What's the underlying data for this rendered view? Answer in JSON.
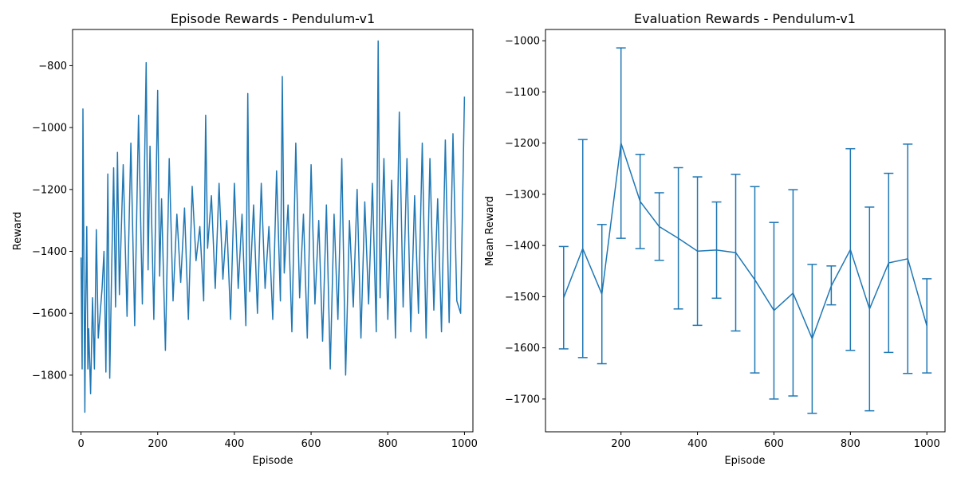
{
  "chart_data": [
    {
      "type": "line",
      "title": "Episode Rewards - Pendulum-v1",
      "xlabel": "Episode",
      "ylabel": "Reward",
      "xlim": [
        -22,
        1022
      ],
      "ylim": [
        -1983,
        -683
      ],
      "xticks": [
        0,
        200,
        400,
        600,
        800,
        1000
      ],
      "yticks": [
        -1800,
        -1600,
        -1400,
        -1200,
        -1000,
        -800
      ],
      "color": "#1f77b4",
      "grid": false,
      "series": [
        {
          "x": [
            0,
            3,
            5,
            8,
            10,
            12,
            15,
            18,
            20,
            25,
            30,
            35,
            40,
            45,
            50,
            55,
            60,
            65,
            70,
            75,
            80,
            85,
            90,
            95,
            100,
            110,
            120,
            130,
            140,
            150,
            160,
            170,
            175,
            180,
            190,
            200,
            205,
            210,
            220,
            230,
            240,
            250,
            260,
            270,
            280,
            290,
            300,
            310,
            320,
            325,
            330,
            340,
            350,
            360,
            370,
            380,
            390,
            400,
            410,
            420,
            430,
            435,
            440,
            450,
            460,
            470,
            480,
            490,
            500,
            510,
            520,
            525,
            530,
            540,
            550,
            560,
            570,
            580,
            590,
            600,
            610,
            620,
            630,
            640,
            650,
            660,
            670,
            680,
            690,
            700,
            710,
            720,
            730,
            740,
            750,
            760,
            770,
            775,
            780,
            790,
            800,
            810,
            820,
            830,
            840,
            850,
            860,
            870,
            880,
            890,
            900,
            910,
            920,
            930,
            940,
            950,
            960,
            970,
            980,
            990,
            1000
          ],
          "y": [
            -1420,
            -1780,
            -940,
            -1500,
            -1920,
            -1600,
            -1320,
            -1780,
            -1650,
            -1860,
            -1550,
            -1780,
            -1330,
            -1680,
            -1600,
            -1520,
            -1400,
            -1790,
            -1150,
            -1810,
            -1460,
            -1130,
            -1580,
            -1080,
            -1540,
            -1120,
            -1610,
            -1050,
            -1640,
            -960,
            -1570,
            -790,
            -1460,
            -1060,
            -1620,
            -880,
            -1480,
            -1230,
            -1720,
            -1100,
            -1560,
            -1280,
            -1500,
            -1260,
            -1620,
            -1190,
            -1430,
            -1320,
            -1560,
            -960,
            -1390,
            -1220,
            -1520,
            -1180,
            -1490,
            -1300,
            -1620,
            -1180,
            -1520,
            -1280,
            -1640,
            -890,
            -1530,
            -1250,
            -1600,
            -1180,
            -1520,
            -1320,
            -1620,
            -1140,
            -1560,
            -835,
            -1470,
            -1250,
            -1660,
            -1050,
            -1550,
            -1280,
            -1680,
            -1120,
            -1570,
            -1300,
            -1690,
            -1250,
            -1780,
            -1280,
            -1620,
            -1100,
            -1800,
            -1300,
            -1580,
            -1200,
            -1680,
            -1240,
            -1570,
            -1180,
            -1660,
            -720,
            -1550,
            -1100,
            -1620,
            -1170,
            -1680,
            -950,
            -1580,
            -1100,
            -1660,
            -1220,
            -1600,
            -1050,
            -1680,
            -1100,
            -1590,
            -1230,
            -1660,
            -1040,
            -1630,
            -1020,
            -1560,
            -1600,
            -900
          ]
        }
      ]
    },
    {
      "type": "line",
      "title": "Evaluation Rewards - Pendulum-v1",
      "xlabel": "Episode",
      "ylabel": "Mean Reward",
      "xlim": [
        2.5,
        1047.5
      ],
      "ylim": [
        -1764,
        -978
      ],
      "xticks": [
        200,
        400,
        600,
        800,
        1000
      ],
      "yticks": [
        -1700,
        -1600,
        -1500,
        -1400,
        -1300,
        -1200,
        -1100,
        -1000
      ],
      "color": "#1f77b4",
      "grid": false,
      "error_bars": true,
      "series": [
        {
          "x": [
            50,
            100,
            150,
            200,
            250,
            300,
            350,
            400,
            450,
            500,
            550,
            600,
            650,
            700,
            750,
            800,
            850,
            900,
            950,
            1000
          ],
          "y": [
            -1502,
            -1406,
            -1495,
            -1200,
            -1314,
            -1363,
            -1386,
            -1411,
            -1409,
            -1414,
            -1467,
            -1527,
            -1493,
            -1582,
            -1479,
            -1408,
            -1524,
            -1434,
            -1426,
            -1557
          ],
          "lower": [
            -1602,
            -1619,
            -1631,
            -1386,
            -1406,
            -1429,
            -1524,
            -1556,
            -1503,
            -1567,
            -1649,
            -1700,
            -1694,
            -1728,
            -1516,
            -1605,
            -1723,
            -1609,
            -1650,
            -1649
          ],
          "upper": [
            -1402,
            -1193,
            -1359,
            -1014,
            -1222,
            -1297,
            -1248,
            -1266,
            -1315,
            -1261,
            -1285,
            -1355,
            -1291,
            -1437,
            -1440,
            -1211,
            -1325,
            -1259,
            -1202,
            -1465
          ]
        }
      ]
    }
  ]
}
